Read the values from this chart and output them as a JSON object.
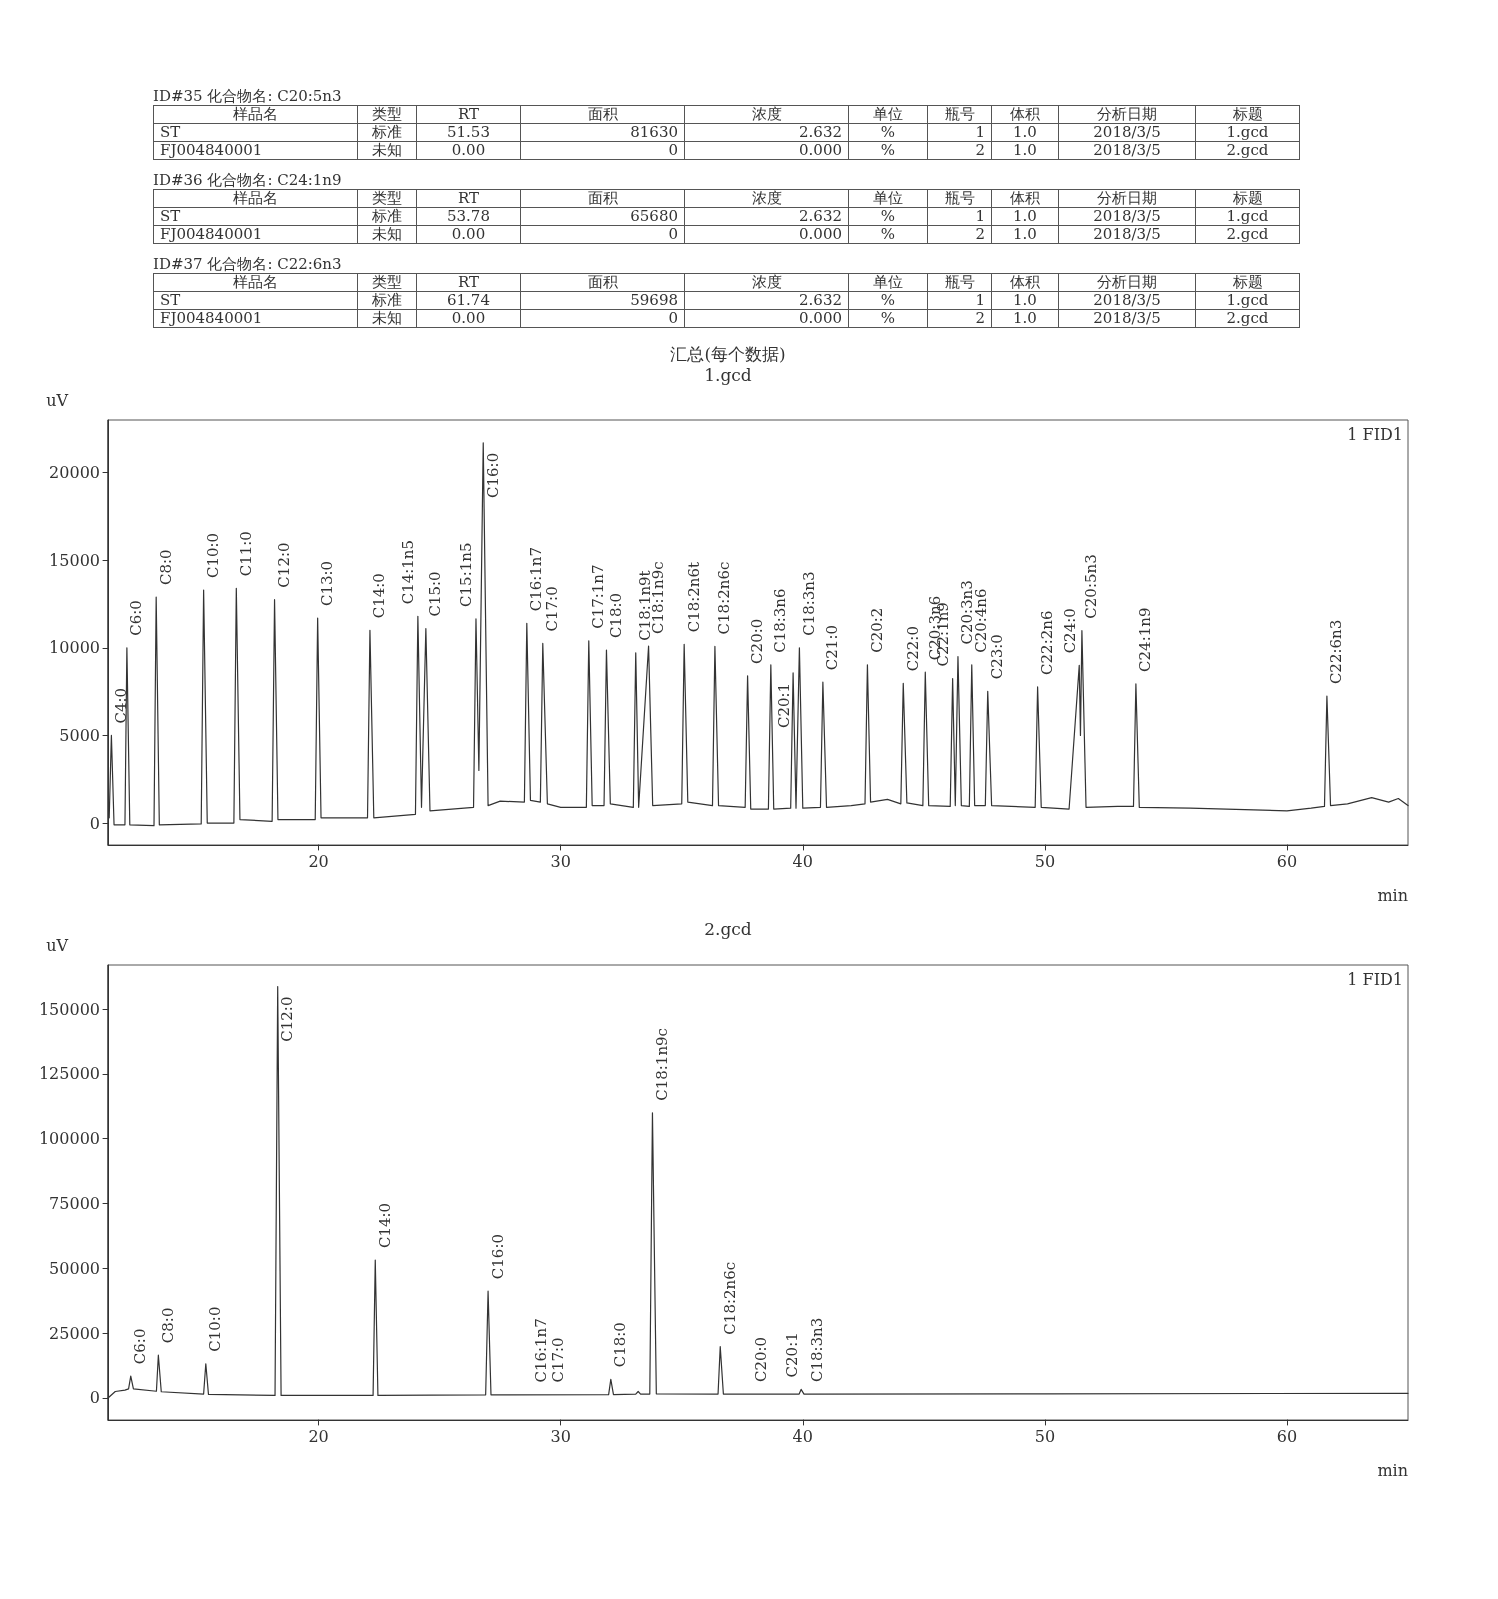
{
  "chart_data": [
    {
      "type": "other",
      "title": "ID#35 化合物名: C20:5n3",
      "categories": [
        "样品名",
        "类型",
        "RT",
        "面积",
        "浓度",
        "单位",
        "瓶号",
        "体积",
        "分析日期",
        "标题"
      ],
      "cell_labels": [
        [
          "ST",
          "标准",
          "51.53",
          "81630",
          "2.632",
          "%",
          "1",
          "1.0",
          "2018/3/5",
          "1.gcd"
        ],
        [
          "FJ004840001",
          "未知",
          "0.00",
          "0",
          "0.000",
          "%",
          "2",
          "1.0",
          "2018/3/5",
          "2.gcd"
        ]
      ]
    },
    {
      "type": "other",
      "title": "ID#36 化合物名: C24:1n9",
      "categories": [
        "样品名",
        "类型",
        "RT",
        "面积",
        "浓度",
        "单位",
        "瓶号",
        "体积",
        "分析日期",
        "标题"
      ],
      "cell_labels": [
        [
          "ST",
          "标准",
          "53.78",
          "65680",
          "2.632",
          "%",
          "1",
          "1.0",
          "2018/3/5",
          "1.gcd"
        ],
        [
          "FJ004840001",
          "未知",
          "0.00",
          "0",
          "0.000",
          "%",
          "2",
          "1.0",
          "2018/3/5",
          "2.gcd"
        ]
      ]
    },
    {
      "type": "other",
      "title": "ID#37 化合物名: C22:6n3",
      "categories": [
        "样品名",
        "类型",
        "RT",
        "面积",
        "浓度",
        "单位",
        "瓶号",
        "体积",
        "分析日期",
        "标题"
      ],
      "cell_labels": [
        [
          "ST",
          "标准",
          "61.74",
          "59698",
          "2.632",
          "%",
          "1",
          "1.0",
          "2018/3/5",
          "1.gcd"
        ],
        [
          "FJ004840001",
          "未知",
          "0.00",
          "0",
          "0.000",
          "%",
          "2",
          "1.0",
          "2018/3/5",
          "2.gcd"
        ]
      ]
    },
    {
      "type": "line",
      "title": "汇总(每个数据)",
      "subtitle": "1.gcd",
      "xlabel": "min",
      "ylabel": "uV",
      "xlim": [
        11.3,
        65
      ],
      "xticks": [
        20,
        30,
        40,
        50,
        60
      ],
      "ylim": [
        -1250,
        23000
      ],
      "yticks": [
        0,
        5000,
        10000,
        15000,
        20000
      ],
      "series": [
        {
          "color": "#333333",
          "x": [
            11.35,
            11.44,
            11.55,
            12.0,
            12.08,
            12.2,
            13.2,
            13.29,
            13.42,
            15.15,
            15.25,
            15.4,
            16.5,
            16.6,
            16.75,
            18.08,
            18.18,
            18.32,
            19.86,
            19.96,
            20.1,
            22.02,
            22.12,
            22.28,
            24.0,
            24.1,
            24.25,
            24.43,
            24.6,
            26.4,
            26.5,
            26.62,
            26.8,
            27.0,
            27.5,
            28.5,
            28.6,
            28.75,
            29.16,
            29.26,
            29.45,
            30.0,
            31.06,
            31.16,
            31.3,
            31.79,
            31.89,
            32.05,
            33.0,
            33.1,
            33.22,
            33.63,
            33.8,
            35.0,
            35.1,
            35.25,
            36.27,
            36.37,
            36.52,
            37.62,
            37.72,
            37.85,
            38.58,
            38.68,
            38.8,
            39.5,
            39.6,
            39.72,
            39.86,
            40.0,
            40.73,
            40.83,
            40.98,
            42.0,
            42.57,
            42.67,
            42.8,
            43.5,
            44.05,
            44.15,
            44.3,
            44.96,
            45.06,
            45.2,
            46.09,
            46.19,
            46.3,
            46.41,
            46.55,
            46.88,
            46.98,
            47.1,
            47.54,
            47.64,
            47.8,
            49.6,
            49.7,
            49.85,
            51.0,
            51.42,
            51.47,
            51.53,
            51.7,
            53.0,
            53.66,
            53.76,
            53.9,
            56.0,
            60.0,
            61.0,
            61.55,
            61.65,
            61.8,
            62.5,
            63.5,
            64.2,
            64.6,
            65.0
          ],
          "values": [
            300,
            5000,
            -100,
            -100,
            10000,
            -100,
            -150,
            12900,
            -100,
            -50,
            13300,
            0,
            0,
            13400,
            200,
            100,
            12750,
            200,
            200,
            11700,
            300,
            300,
            11000,
            300,
            500,
            11800,
            900,
            11100,
            700,
            900,
            11650,
            3000,
            21700,
            1000,
            1250,
            1200,
            11400,
            1300,
            1200,
            10250,
            1100,
            900,
            900,
            10400,
            1000,
            1000,
            9870,
            1100,
            900,
            9720,
            900,
            10100,
            1000,
            1100,
            10200,
            1200,
            1000,
            10080,
            1000,
            900,
            8400,
            800,
            800,
            9030,
            800,
            850,
            8570,
            850,
            10000,
            850,
            900,
            8040,
            900,
            1000,
            1100,
            9030,
            1200,
            1350,
            1100,
            7980,
            1150,
            1000,
            8610,
            1000,
            950,
            8250,
            1000,
            9500,
            1000,
            950,
            9030,
            1000,
            1000,
            7520,
            1000,
            900,
            7770,
            900,
            800,
            9000,
            5000,
            10980,
            900,
            950,
            950,
            7940,
            900,
            850,
            700,
            850,
            950,
            7245,
            1000,
            1100,
            1450,
            1200,
            1400,
            1000
          ]
        }
      ],
      "annotations": [
        "1 FID1",
        {
          "text": "C4:0",
          "x": 11.44,
          "y": 5000
        },
        {
          "text": "C6:0",
          "x": 12.08,
          "y": 10000
        },
        {
          "text": "C8:0",
          "x": 13.29,
          "y": 12900
        },
        {
          "text": "C10:0",
          "x": 15.25,
          "y": 13300
        },
        {
          "text": "C11:0",
          "x": 16.6,
          "y": 13400
        },
        {
          "text": "C12:0",
          "x": 18.18,
          "y": 12750
        },
        {
          "text": "C13:0",
          "x": 19.96,
          "y": 11700
        },
        {
          "text": "C14:0",
          "x": 22.12,
          "y": 11000
        },
        {
          "text": "C14:1n5",
          "x": 24.1,
          "y": 11800
        },
        {
          "text": "C15:0",
          "x": 24.43,
          "y": 11100
        },
        {
          "text": "C15:1n5",
          "x": 26.5,
          "y": 11650
        },
        {
          "text": "C16:0",
          "x": 26.8,
          "y": 21700
        },
        {
          "text": "C16:1n7",
          "x": 28.6,
          "y": 11400
        },
        {
          "text": "C17:0",
          "x": 29.26,
          "y": 10250
        },
        {
          "text": "C17:1n7",
          "x": 31.16,
          "y": 10400
        },
        {
          "text": "C18:0",
          "x": 31.89,
          "y": 9870
        },
        {
          "text": "C18:1n9t",
          "x": 33.1,
          "y": 9720
        },
        {
          "text": "C18:1n9c",
          "x": 33.63,
          "y": 10100
        },
        {
          "text": "C18:2n6t",
          "x": 35.1,
          "y": 10200
        },
        {
          "text": "C18:2n6c",
          "x": 36.37,
          "y": 10080
        },
        {
          "text": "C20:0",
          "x": 37.72,
          "y": 8400
        },
        {
          "text": "C18:3n6",
          "x": 38.68,
          "y": 9030
        },
        {
          "text": "C20:1",
          "x": 39.6,
          "y": 8570
        },
        {
          "text": "C18:3n3",
          "x": 39.86,
          "y": 10000
        },
        {
          "text": "C21:0",
          "x": 40.83,
          "y": 8040
        },
        {
          "text": "C20:2",
          "x": 42.67,
          "y": 9030
        },
        {
          "text": "C22:0",
          "x": 44.15,
          "y": 7980
        },
        {
          "text": "C20:3n6",
          "x": 45.06,
          "y": 8610
        },
        {
          "text": "C22:1n9",
          "x": 46.19,
          "y": 8250
        },
        {
          "text": "C20:3n3",
          "x": 46.41,
          "y": 9500
        },
        {
          "text": "C20:4n6",
          "x": 46.98,
          "y": 9030
        },
        {
          "text": "C23:0",
          "x": 47.64,
          "y": 7520
        },
        {
          "text": "C22:2n6",
          "x": 49.7,
          "y": 7770
        },
        {
          "text": "C24:0",
          "x": 51.42,
          "y": 9000
        },
        {
          "text": "C20:5n3",
          "x": 51.53,
          "y": 10980
        },
        {
          "text": "C24:1n9",
          "x": 53.76,
          "y": 7940
        },
        {
          "text": "C22:6n3",
          "x": 61.65,
          "y": 7245
        }
      ]
    },
    {
      "type": "line",
      "title": "2.gcd",
      "xlabel": "min",
      "ylabel": "uV",
      "xlim": [
        11.3,
        65
      ],
      "xticks": [
        20,
        30,
        40,
        50,
        60
      ],
      "ylim": [
        -8500,
        167000
      ],
      "yticks": [
        0,
        25000,
        50000,
        75000,
        100000,
        125000,
        150000
      ],
      "series": [
        {
          "color": "#333333",
          "x": [
            11.3,
            11.6,
            12.0,
            12.15,
            12.24,
            12.35,
            13.3,
            13.38,
            13.5,
            15.25,
            15.34,
            15.45,
            18.2,
            18.31,
            18.45,
            22.25,
            22.34,
            22.45,
            26.9,
            27.0,
            27.12,
            31.98,
            32.07,
            32.18,
            33.1,
            33.2,
            33.3,
            33.68,
            33.79,
            33.95,
            36.5,
            36.59,
            36.72,
            39.85,
            39.93,
            40.05,
            50.0,
            65.0
          ],
          "values": [
            0,
            2500,
            3000,
            3500,
            8400,
            3500,
            2600,
            16500,
            2400,
            1500,
            13200,
            1400,
            1000,
            158700,
            1000,
            1000,
            53200,
            1000,
            1200,
            41200,
            1200,
            1300,
            7200,
            1300,
            1500,
            2500,
            1500,
            1500,
            110000,
            1600,
            1500,
            19800,
            1500,
            1500,
            3300,
            1500,
            1600,
            1800
          ]
        }
      ],
      "annotations": [
        "1 FID1",
        {
          "text": "C6:0",
          "x": 12.24,
          "y": 8400
        },
        {
          "text": "C8:0",
          "x": 13.38,
          "y": 16500
        },
        {
          "text": "C10:0",
          "x": 15.34,
          "y": 13200
        },
        {
          "text": "C12:0",
          "x": 18.31,
          "y": 158700
        },
        {
          "text": "C14:0",
          "x": 22.34,
          "y": 53200
        },
        {
          "text": "C16:0",
          "x": 27.0,
          "y": 41200
        },
        {
          "text": "C16:1n7",
          "x": 28.8,
          "y": 1300
        },
        {
          "text": "C17:0",
          "x": 29.5,
          "y": 1300
        },
        {
          "text": "C18:0",
          "x": 32.07,
          "y": 7200
        },
        {
          "text": "C18:1n9c",
          "x": 33.79,
          "y": 110000
        },
        {
          "text": "C18:2n6c",
          "x": 36.59,
          "y": 19800
        },
        {
          "text": "C20:0",
          "x": 37.9,
          "y": 1500
        },
        {
          "text": "C20:1",
          "x": 39.93,
          "y": 3300
        },
        {
          "text": "C18:3n3",
          "x": 40.2,
          "y": 1500
        }
      ]
    }
  ]
}
